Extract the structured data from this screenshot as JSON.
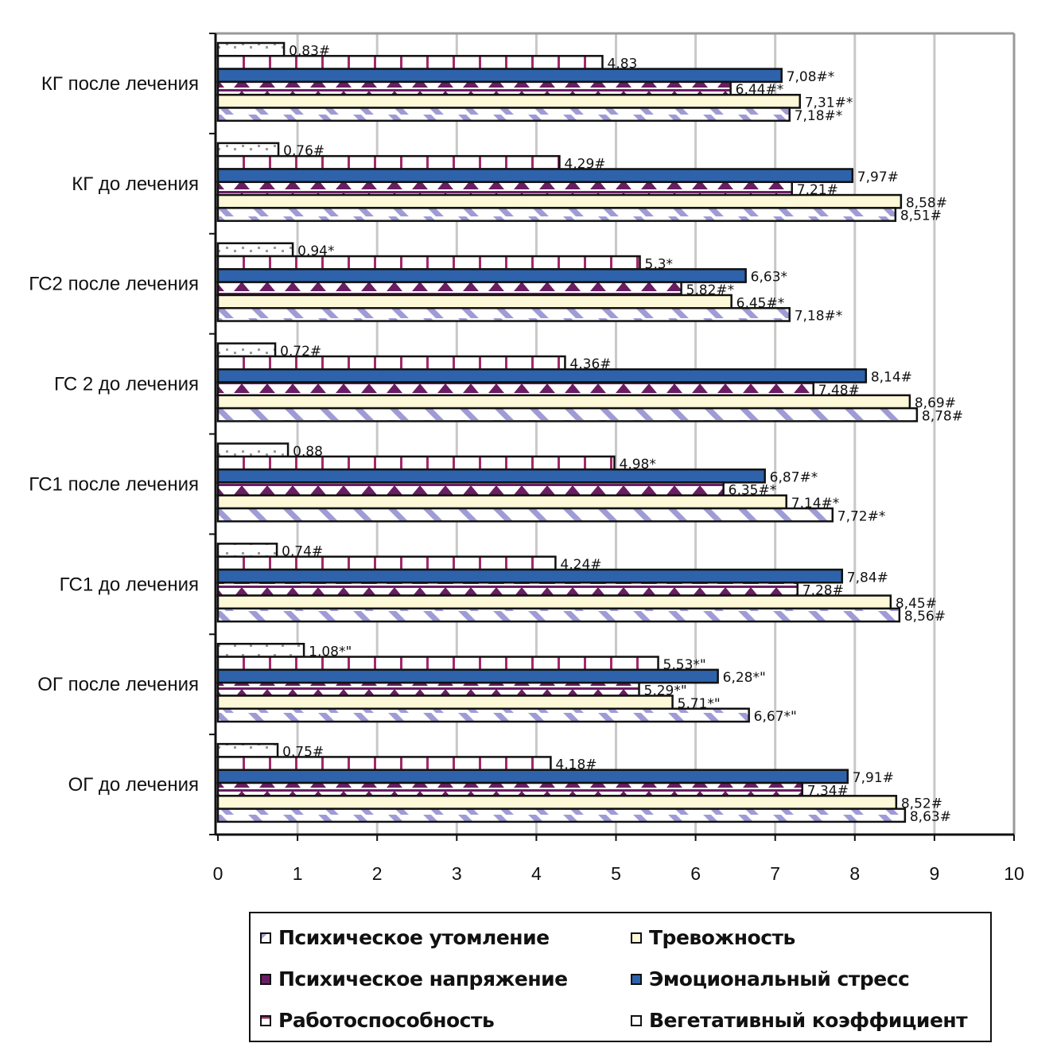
{
  "chart_data": {
    "type": "bar",
    "orientation": "horizontal",
    "categories": [
      "КГ после лечения",
      "КГ до лечения",
      "ГС2 после лечения",
      "ГС 2 до лечения",
      "ГС1 после лечения",
      "ГС1 до лечения",
      "ОГ после лечения",
      "ОГ до лечения"
    ],
    "series": [
      {
        "name": "Вегетативный коэффициент",
        "color": "#ffffff",
        "pattern": "dots",
        "values": [
          0.83,
          0.76,
          0.94,
          0.72,
          0.88,
          0.74,
          1.08,
          0.75
        ],
        "labels": [
          "0,83#",
          "0,76#",
          "0,94*",
          "0,72#",
          "0,88",
          "0,74#",
          "1,08*\"",
          "0,75#"
        ]
      },
      {
        "name": "Работоспособность",
        "color": "#a3286a",
        "pattern": "vlines",
        "values": [
          4.83,
          4.29,
          5.3,
          4.36,
          4.98,
          4.24,
          5.53,
          4.18
        ],
        "labels": [
          "4,83",
          "4,29#",
          "5,3*",
          "4,36#",
          "4,98*",
          "4,24#",
          "5,53*\"",
          "4,18#"
        ]
      },
      {
        "name": "Эмоциональный стресс",
        "color": "#2e62ab",
        "pattern": "solid",
        "values": [
          7.08,
          7.97,
          6.63,
          8.14,
          6.87,
          7.84,
          6.28,
          7.91
        ],
        "labels": [
          "7,08#*",
          "7,97#",
          "6,63*",
          "8,14#",
          "6,87#*",
          "7,84#",
          "6,28*\"",
          "7,91#"
        ]
      },
      {
        "name": "Психическое напряжение",
        "color": "#6a1d63",
        "pattern": "triangles",
        "values": [
          6.44,
          7.21,
          5.82,
          7.48,
          6.35,
          7.28,
          5.29,
          7.34
        ],
        "labels": [
          "6,44#*",
          "7,21#",
          "5,82#*",
          "7,48#",
          "6,35#*",
          "7,28#",
          "5,29*\"",
          "7,34#"
        ]
      },
      {
        "name": "Тревожность",
        "color": "#fdf8d8",
        "pattern": "solid",
        "values": [
          7.31,
          8.58,
          6.45,
          8.69,
          7.14,
          8.45,
          5.71,
          8.52
        ],
        "labels": [
          "7,31#*",
          "8,58#",
          "6,45#*",
          "8,69#",
          "7,14#*",
          "8,45#",
          "5,71*\"",
          "8,52#"
        ]
      },
      {
        "name": "Психическое утомление",
        "color": "#9f9bd6",
        "pattern": "diagonal",
        "values": [
          7.18,
          8.51,
          7.18,
          8.78,
          7.72,
          8.56,
          6.67,
          8.63
        ],
        "labels": [
          "7,18#*",
          "8,51#",
          "7,18#*",
          "8,78#",
          "7,72#*",
          "8,56#",
          "6,67*\"",
          "8,63#"
        ]
      }
    ],
    "xlim": [
      0,
      10
    ],
    "xticks": [
      "0",
      "1",
      "2",
      "3",
      "4",
      "5",
      "6",
      "7",
      "8",
      "9",
      "10"
    ],
    "grid": true,
    "legend_position": "bottom",
    "legend": [
      "Психическое утомление",
      "Тревожность",
      "Психическое напряжение",
      "Эмоциональный стресс",
      "Работоспособность",
      "Вегетативный коэффициент"
    ]
  }
}
